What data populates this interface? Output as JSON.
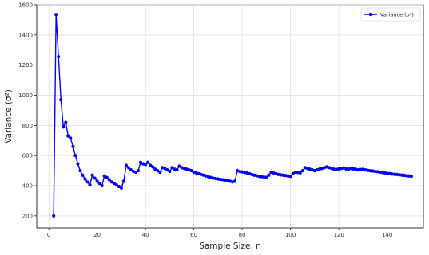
{
  "chart_data": {
    "type": "line",
    "title": "",
    "xlabel": "Sample Size, n",
    "ylabel": "Variance (σ²)",
    "xlim": [
      -5,
      155
    ],
    "ylim": [
      120,
      1600
    ],
    "xticks": [
      0,
      20,
      40,
      60,
      80,
      100,
      120,
      140
    ],
    "yticks": [
      200,
      400,
      600,
      800,
      1000,
      1200,
      1400,
      1600
    ],
    "grid": true,
    "legend_position": "top-right",
    "series": [
      {
        "name": "Variance (σ²)",
        "color": "#0000ff",
        "marker": "circle",
        "x": [
          2,
          3,
          4,
          5,
          6,
          7,
          8,
          9,
          10,
          11,
          12,
          13,
          14,
          15,
          16,
          17,
          18,
          19,
          20,
          21,
          22,
          23,
          24,
          25,
          26,
          27,
          28,
          29,
          30,
          31,
          32,
          33,
          34,
          35,
          36,
          37,
          38,
          39,
          40,
          41,
          42,
          43,
          44,
          45,
          46,
          47,
          48,
          49,
          50,
          51,
          52,
          53,
          54,
          55,
          56,
          57,
          58,
          59,
          60,
          61,
          62,
          63,
          64,
          65,
          66,
          67,
          68,
          69,
          70,
          71,
          72,
          73,
          74,
          75,
          76,
          77,
          78,
          79,
          80,
          81,
          82,
          83,
          84,
          85,
          86,
          87,
          88,
          89,
          90,
          91,
          92,
          93,
          94,
          95,
          96,
          97,
          98,
          99,
          100,
          101,
          102,
          103,
          104,
          105,
          106,
          107,
          108,
          109,
          110,
          111,
          112,
          113,
          114,
          115,
          116,
          117,
          118,
          119,
          120,
          121,
          122,
          123,
          124,
          125,
          126,
          127,
          128,
          129,
          130,
          131,
          132,
          133,
          134,
          135,
          136,
          137,
          138,
          139,
          140,
          141,
          142,
          143,
          144,
          145,
          146,
          147,
          148,
          149,
          150
        ],
        "y": [
          200,
          1535,
          1255,
          970,
          790,
          820,
          730,
          715,
          660,
          600,
          545,
          500,
          470,
          445,
          425,
          405,
          470,
          450,
          430,
          415,
          400,
          465,
          455,
          440,
          425,
          415,
          405,
          395,
          385,
          430,
          535,
          520,
          505,
          495,
          490,
          500,
          555,
          545,
          540,
          555,
          535,
          525,
          510,
          500,
          490,
          520,
          515,
          505,
          495,
          520,
          510,
          505,
          530,
          520,
          515,
          510,
          505,
          500,
          490,
          485,
          480,
          475,
          470,
          465,
          460,
          455,
          450,
          448,
          445,
          442,
          440,
          438,
          435,
          430,
          425,
          430,
          500,
          495,
          492,
          488,
          485,
          480,
          475,
          470,
          466,
          463,
          460,
          458,
          456,
          470,
          490,
          485,
          480,
          475,
          472,
          470,
          468,
          465,
          462,
          480,
          490,
          488,
          485,
          500,
          520,
          515,
          510,
          505,
          500,
          505,
          510,
          515,
          520,
          525,
          520,
          515,
          510,
          508,
          512,
          515,
          518,
          512,
          510,
          515,
          512,
          510,
          505,
          508,
          510,
          505,
          502,
          500,
          498,
          495,
          493,
          490,
          488,
          485,
          483,
          480,
          478,
          476,
          475,
          473,
          471,
          469,
          467,
          465,
          462
        ]
      }
    ]
  }
}
